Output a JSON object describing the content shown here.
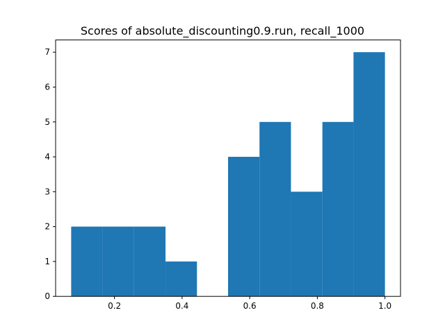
{
  "chart_data": {
    "type": "bar",
    "title": "Scores of absolute_discounting0.9.run, recall_1000",
    "xlabel": "",
    "ylabel": "",
    "bins": [
      {
        "x0": 0.072,
        "x1": 0.165,
        "count": 2
      },
      {
        "x0": 0.165,
        "x1": 0.258,
        "count": 2
      },
      {
        "x0": 0.258,
        "x1": 0.351,
        "count": 2
      },
      {
        "x0": 0.351,
        "x1": 0.444,
        "count": 1
      },
      {
        "x0": 0.444,
        "x1": 0.536,
        "count": 0
      },
      {
        "x0": 0.536,
        "x1": 0.629,
        "count": 4
      },
      {
        "x0": 0.629,
        "x1": 0.722,
        "count": 5
      },
      {
        "x0": 0.722,
        "x1": 0.815,
        "count": 3
      },
      {
        "x0": 0.815,
        "x1": 0.907,
        "count": 5
      },
      {
        "x0": 0.907,
        "x1": 1.0,
        "count": 7
      }
    ],
    "xlim": [
      0.026,
      1.046
    ],
    "ylim": [
      0,
      7.35
    ],
    "xticks": [
      {
        "value": 0.2,
        "label": "0.2"
      },
      {
        "value": 0.4,
        "label": "0.4"
      },
      {
        "value": 0.6,
        "label": "0.6"
      },
      {
        "value": 0.8,
        "label": "0.8"
      },
      {
        "value": 1.0,
        "label": "1.0"
      }
    ],
    "yticks": [
      {
        "value": 0,
        "label": "0"
      },
      {
        "value": 1,
        "label": "1"
      },
      {
        "value": 2,
        "label": "2"
      },
      {
        "value": 3,
        "label": "3"
      },
      {
        "value": 4,
        "label": "4"
      },
      {
        "value": 5,
        "label": "5"
      },
      {
        "value": 6,
        "label": "6"
      },
      {
        "value": 7,
        "label": "7"
      }
    ],
    "grid": false,
    "bar_color": "#1f77b4"
  }
}
